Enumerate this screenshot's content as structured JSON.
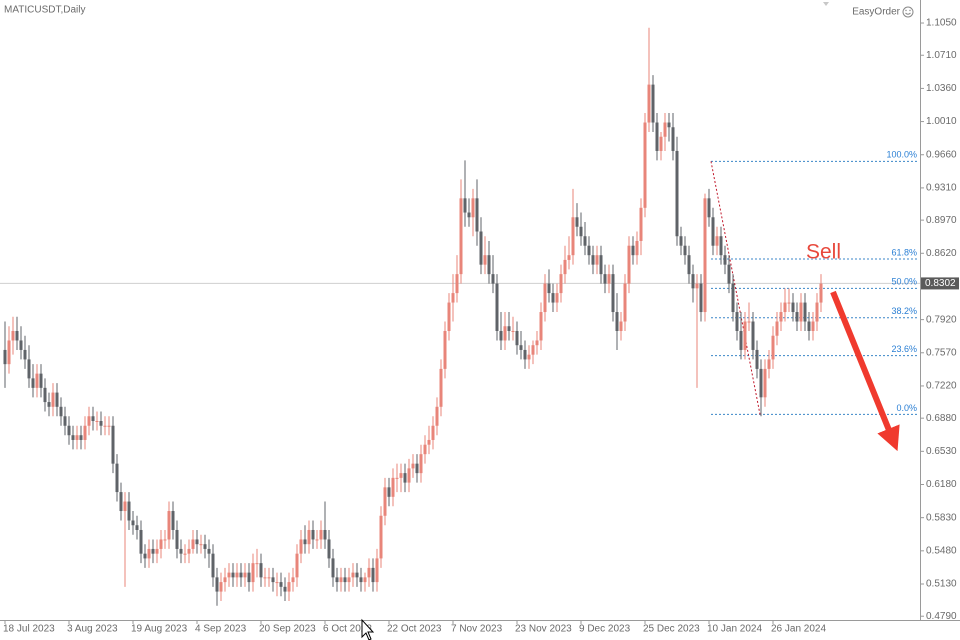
{
  "chart_data": {
    "type": "candlestick",
    "title": "MATICUSDT,Daily",
    "brand": "EasyOrder",
    "annotation": "Sell",
    "up_color": "#e8857a",
    "down_color": "#5f6368",
    "ylim": [
      0.475,
      1.1293
    ],
    "yticks": [
      {
        "value": 1.105,
        "label": "1.1050"
      },
      {
        "value": 1.071,
        "label": "1.0710"
      },
      {
        "value": 1.036,
        "label": "1.0360"
      },
      {
        "value": 1.001,
        "label": "1.0010"
      },
      {
        "value": 0.966,
        "label": "0.9660"
      },
      {
        "value": 0.931,
        "label": "0.9310"
      },
      {
        "value": 0.897,
        "label": "0.8970"
      },
      {
        "value": 0.862,
        "label": "0.8620"
      },
      {
        "value": 0.792,
        "label": "0.7920"
      },
      {
        "value": 0.757,
        "label": "0.7570"
      },
      {
        "value": 0.722,
        "label": "0.7220"
      },
      {
        "value": 0.688,
        "label": "0.6880"
      },
      {
        "value": 0.653,
        "label": "0.6530"
      },
      {
        "value": 0.618,
        "label": "0.6180"
      },
      {
        "value": 0.583,
        "label": "0.5830"
      },
      {
        "value": 0.548,
        "label": "0.5480"
      },
      {
        "value": 0.513,
        "label": "0.5130"
      },
      {
        "value": 0.479,
        "label": "0.4790"
      }
    ],
    "current_price": 0.8302,
    "fib_levels": [
      {
        "label": "100.0%",
        "value": 0.959
      },
      {
        "label": "61.8%",
        "value": 0.856
      },
      {
        "label": "50.0%",
        "value": 0.825
      },
      {
        "label": "38.2%",
        "value": 0.794
      },
      {
        "label": "23.6%",
        "value": 0.754
      },
      {
        "label": "0.0%",
        "value": 0.692
      }
    ],
    "categories": [
      "18 Jul 2023",
      null,
      null,
      null,
      null,
      null,
      null,
      null,
      null,
      null,
      null,
      null,
      null,
      null,
      null,
      null,
      "3 Aug 2023",
      null,
      null,
      null,
      null,
      null,
      null,
      null,
      null,
      null,
      null,
      null,
      null,
      null,
      null,
      null,
      "19 Aug 2023",
      null,
      null,
      null,
      null,
      null,
      null,
      null,
      null,
      null,
      null,
      null,
      null,
      null,
      null,
      null,
      "4 Sep 2023",
      null,
      null,
      null,
      null,
      null,
      null,
      null,
      null,
      null,
      null,
      null,
      null,
      null,
      null,
      null,
      "20 Sep 2023",
      null,
      null,
      null,
      null,
      null,
      null,
      null,
      null,
      null,
      null,
      null,
      null,
      null,
      null,
      null,
      "6 Oct 2023",
      null,
      null,
      null,
      null,
      null,
      null,
      null,
      null,
      null,
      null,
      null,
      null,
      null,
      null,
      null,
      "22 Oct 2023",
      null,
      null,
      null,
      null,
      null,
      null,
      null,
      null,
      null,
      null,
      null,
      null,
      null,
      null,
      null,
      "7 Nov 2023",
      null,
      null,
      null,
      null,
      null,
      null,
      null,
      null,
      null,
      null,
      null,
      null,
      null,
      null,
      null,
      "23 Nov 2023",
      null,
      null,
      null,
      null,
      null,
      null,
      null,
      null,
      null,
      null,
      null,
      null,
      null,
      null,
      null,
      "9 Dec 2023",
      null,
      null,
      null,
      null,
      null,
      null,
      null,
      null,
      null,
      null,
      null,
      null,
      null,
      null,
      null,
      "25 Dec 2023",
      null,
      null,
      null,
      null,
      null,
      null,
      null,
      null,
      null,
      null,
      null,
      null,
      null,
      null,
      null,
      "10 Jan 2024",
      null,
      null,
      null,
      null,
      null,
      null,
      null,
      null,
      null,
      null,
      null,
      null,
      null,
      null,
      null,
      "26 Jan 2024",
      null,
      null,
      null,
      null,
      null,
      null,
      null,
      null,
      null,
      null,
      null,
      null
    ],
    "open": [
      0.76,
      0.745,
      0.77,
      0.78,
      0.77,
      0.76,
      0.75,
      0.73,
      0.72,
      0.735,
      0.72,
      0.705,
      0.7,
      0.715,
      0.7,
      0.69,
      0.68,
      0.67,
      0.665,
      0.67,
      0.665,
      0.68,
      0.69,
      0.685,
      0.685,
      0.68,
      0.68,
      0.68,
      0.64,
      0.61,
      0.59,
      0.6,
      0.58,
      0.575,
      0.57,
      0.545,
      0.54,
      0.55,
      0.545,
      0.55,
      0.56,
      0.56,
      0.59,
      0.57,
      0.55,
      0.545,
      0.545,
      0.55,
      0.56,
      0.555,
      0.555,
      0.55,
      0.545,
      0.52,
      0.505,
      0.515,
      0.52,
      0.525,
      0.52,
      0.525,
      0.52,
      0.525,
      0.515,
      0.535,
      0.535,
      0.52,
      0.52,
      0.52,
      0.515,
      0.515,
      0.51,
      0.505,
      0.515,
      0.52,
      0.545,
      0.56,
      0.555,
      0.57,
      0.56,
      0.56,
      0.57,
      0.56,
      0.54,
      0.52,
      0.515,
      0.52,
      0.515,
      0.52,
      0.525,
      0.52,
      0.515,
      0.52,
      0.53,
      0.515,
      0.54,
      0.585,
      0.615,
      0.605,
      0.625,
      0.625,
      0.63,
      0.62,
      0.635,
      0.64,
      0.63,
      0.65,
      0.66,
      0.665,
      0.68,
      0.7,
      0.74,
      0.78,
      0.81,
      0.82,
      0.84,
      0.92,
      0.905,
      0.9,
      0.92,
      0.885,
      0.85,
      0.86,
      0.84,
      0.83,
      0.78,
      0.77,
      0.785,
      0.78,
      0.78,
      0.765,
      0.76,
      0.75,
      0.755,
      0.765,
      0.77,
      0.8,
      0.83,
      0.82,
      0.81,
      0.82,
      0.84,
      0.855,
      0.86,
      0.9,
      0.89,
      0.88,
      0.87,
      0.86,
      0.85,
      0.86,
      0.84,
      0.83,
      0.84,
      0.8,
      0.78,
      0.79,
      0.83,
      0.87,
      0.86,
      0.875,
      0.91,
      1.0,
      1.04,
      1.0,
      0.97,
      0.985,
      1.0,
      0.995,
      0.97,
      0.88,
      0.87,
      0.86,
      0.84,
      0.825,
      0.83,
      0.8,
      0.92,
      0.9,
      0.87,
      0.88,
      0.86,
      0.85,
      0.83,
      0.8,
      0.78,
      0.76,
      0.79,
      0.79,
      0.76,
      0.74,
      0.71,
      0.74,
      0.75,
      0.775,
      0.79,
      0.8,
      0.81,
      0.81,
      0.8,
      0.79,
      0.81,
      0.79,
      0.78,
      0.79,
      0.81
    ],
    "high": [
      0.79,
      0.785,
      0.795,
      0.795,
      0.785,
      0.775,
      0.765,
      0.745,
      0.745,
      0.745,
      0.73,
      0.715,
      0.725,
      0.725,
      0.71,
      0.7,
      0.69,
      0.68,
      0.68,
      0.68,
      0.69,
      0.7,
      0.7,
      0.695,
      0.695,
      0.69,
      0.69,
      0.69,
      0.65,
      0.62,
      0.61,
      0.61,
      0.59,
      0.585,
      0.58,
      0.555,
      0.56,
      0.56,
      0.56,
      0.57,
      0.57,
      0.6,
      0.6,
      0.58,
      0.56,
      0.555,
      0.56,
      0.57,
      0.57,
      0.565,
      0.565,
      0.56,
      0.555,
      0.53,
      0.525,
      0.53,
      0.535,
      0.535,
      0.535,
      0.535,
      0.535,
      0.535,
      0.545,
      0.55,
      0.545,
      0.53,
      0.53,
      0.53,
      0.525,
      0.525,
      0.52,
      0.525,
      0.53,
      0.555,
      0.57,
      0.575,
      0.58,
      0.58,
      0.57,
      0.58,
      0.6,
      0.57,
      0.55,
      0.53,
      0.53,
      0.53,
      0.53,
      0.535,
      0.535,
      0.53,
      0.525,
      0.54,
      0.54,
      0.55,
      0.595,
      0.625,
      0.625,
      0.635,
      0.64,
      0.64,
      0.64,
      0.645,
      0.65,
      0.65,
      0.66,
      0.67,
      0.68,
      0.69,
      0.71,
      0.75,
      0.79,
      0.82,
      0.84,
      0.86,
      0.94,
      0.96,
      0.92,
      0.93,
      0.94,
      0.9,
      0.88,
      0.875,
      0.86,
      0.84,
      0.8,
      0.8,
      0.8,
      0.795,
      0.79,
      0.78,
      0.77,
      0.765,
      0.77,
      0.78,
      0.81,
      0.84,
      0.845,
      0.83,
      0.83,
      0.85,
      0.87,
      0.88,
      0.93,
      0.915,
      0.905,
      0.895,
      0.88,
      0.87,
      0.87,
      0.87,
      0.85,
      0.85,
      0.85,
      0.82,
      0.8,
      0.84,
      0.88,
      0.88,
      0.885,
      0.92,
      1.01,
      1.1,
      1.05,
      1.01,
      0.99,
      1.01,
      1.01,
      1.01,
      0.985,
      0.89,
      0.88,
      0.87,
      0.85,
      0.84,
      0.84,
      0.925,
      0.93,
      0.91,
      0.89,
      0.89,
      0.87,
      0.86,
      0.84,
      0.81,
      0.8,
      0.8,
      0.81,
      0.8,
      0.77,
      0.75,
      0.75,
      0.76,
      0.785,
      0.8,
      0.81,
      0.825,
      0.825,
      0.82,
      0.81,
      0.82,
      0.82,
      0.8,
      0.8,
      0.82,
      0.84
    ],
    "low": [
      0.72,
      0.735,
      0.755,
      0.76,
      0.75,
      0.74,
      0.72,
      0.71,
      0.71,
      0.71,
      0.695,
      0.69,
      0.69,
      0.69,
      0.68,
      0.67,
      0.66,
      0.655,
      0.655,
      0.655,
      0.655,
      0.67,
      0.675,
      0.675,
      0.67,
      0.67,
      0.67,
      0.63,
      0.6,
      0.58,
      0.51,
      0.57,
      0.565,
      0.56,
      0.535,
      0.53,
      0.53,
      0.535,
      0.535,
      0.54,
      0.55,
      0.55,
      0.56,
      0.54,
      0.535,
      0.535,
      0.535,
      0.545,
      0.545,
      0.545,
      0.54,
      0.53,
      0.51,
      0.49,
      0.495,
      0.505,
      0.51,
      0.51,
      0.51,
      0.51,
      0.51,
      0.505,
      0.505,
      0.52,
      0.51,
      0.51,
      0.51,
      0.505,
      0.5,
      0.5,
      0.495,
      0.495,
      0.505,
      0.51,
      0.535,
      0.545,
      0.545,
      0.55,
      0.55,
      0.55,
      0.55,
      0.53,
      0.51,
      0.505,
      0.505,
      0.505,
      0.505,
      0.51,
      0.51,
      0.505,
      0.505,
      0.51,
      0.505,
      0.505,
      0.53,
      0.575,
      0.595,
      0.595,
      0.61,
      0.61,
      0.61,
      0.61,
      0.625,
      0.62,
      0.62,
      0.64,
      0.65,
      0.655,
      0.67,
      0.69,
      0.73,
      0.77,
      0.79,
      0.81,
      0.83,
      0.89,
      0.89,
      0.88,
      0.87,
      0.84,
      0.84,
      0.83,
      0.82,
      0.77,
      0.76,
      0.76,
      0.77,
      0.77,
      0.755,
      0.75,
      0.74,
      0.74,
      0.745,
      0.755,
      0.76,
      0.79,
      0.81,
      0.8,
      0.8,
      0.81,
      0.83,
      0.845,
      0.85,
      0.88,
      0.87,
      0.86,
      0.85,
      0.84,
      0.84,
      0.83,
      0.82,
      0.82,
      0.79,
      0.76,
      0.77,
      0.78,
      0.82,
      0.85,
      0.85,
      0.86,
      0.9,
      0.99,
      0.99,
      0.96,
      0.96,
      0.97,
      0.98,
      0.96,
      0.87,
      0.86,
      0.85,
      0.83,
      0.81,
      0.72,
      0.79,
      0.79,
      0.89,
      0.86,
      0.86,
      0.85,
      0.84,
      0.82,
      0.79,
      0.77,
      0.75,
      0.75,
      0.78,
      0.75,
      0.73,
      0.69,
      0.7,
      0.73,
      0.74,
      0.765,
      0.78,
      0.79,
      0.8,
      0.79,
      0.78,
      0.78,
      0.78,
      0.77,
      0.77,
      0.78,
      0.8
    ],
    "close": [
      0.745,
      0.77,
      0.78,
      0.77,
      0.76,
      0.75,
      0.73,
      0.72,
      0.735,
      0.72,
      0.705,
      0.7,
      0.715,
      0.7,
      0.69,
      0.68,
      0.67,
      0.665,
      0.67,
      0.665,
      0.68,
      0.69,
      0.685,
      0.685,
      0.68,
      0.68,
      0.68,
      0.64,
      0.61,
      0.59,
      0.6,
      0.58,
      0.575,
      0.57,
      0.545,
      0.54,
      0.55,
      0.545,
      0.55,
      0.56,
      0.56,
      0.59,
      0.57,
      0.55,
      0.545,
      0.545,
      0.55,
      0.56,
      0.555,
      0.555,
      0.55,
      0.545,
      0.52,
      0.505,
      0.515,
      0.52,
      0.525,
      0.52,
      0.525,
      0.52,
      0.525,
      0.515,
      0.535,
      0.535,
      0.52,
      0.52,
      0.52,
      0.515,
      0.515,
      0.51,
      0.505,
      0.515,
      0.52,
      0.545,
      0.56,
      0.555,
      0.57,
      0.56,
      0.56,
      0.57,
      0.56,
      0.54,
      0.52,
      0.515,
      0.52,
      0.515,
      0.52,
      0.525,
      0.52,
      0.515,
      0.52,
      0.53,
      0.515,
      0.54,
      0.585,
      0.615,
      0.605,
      0.625,
      0.625,
      0.63,
      0.62,
      0.635,
      0.64,
      0.63,
      0.65,
      0.66,
      0.665,
      0.68,
      0.7,
      0.74,
      0.78,
      0.81,
      0.82,
      0.84,
      0.92,
      0.905,
      0.9,
      0.92,
      0.885,
      0.85,
      0.86,
      0.84,
      0.83,
      0.78,
      0.77,
      0.785,
      0.78,
      0.78,
      0.765,
      0.76,
      0.75,
      0.755,
      0.765,
      0.77,
      0.8,
      0.83,
      0.82,
      0.81,
      0.82,
      0.84,
      0.855,
      0.86,
      0.9,
      0.89,
      0.88,
      0.87,
      0.86,
      0.85,
      0.86,
      0.84,
      0.83,
      0.84,
      0.8,
      0.78,
      0.79,
      0.83,
      0.87,
      0.86,
      0.875,
      0.91,
      1.0,
      1.04,
      1.0,
      0.97,
      0.985,
      1.0,
      0.995,
      0.97,
      0.88,
      0.87,
      0.86,
      0.84,
      0.825,
      0.83,
      0.8,
      0.92,
      0.9,
      0.87,
      0.88,
      0.86,
      0.85,
      0.83,
      0.8,
      0.78,
      0.76,
      0.79,
      0.79,
      0.76,
      0.74,
      0.71,
      0.74,
      0.75,
      0.775,
      0.79,
      0.8,
      0.81,
      0.81,
      0.8,
      0.79,
      0.81,
      0.79,
      0.78,
      0.79,
      0.81,
      0.83
    ]
  }
}
